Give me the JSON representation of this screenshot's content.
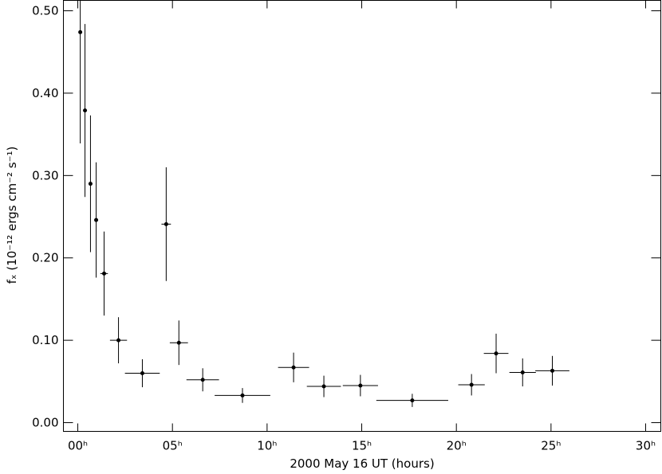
{
  "chart_data": {
    "type": "scatter",
    "xlabel": "2000 May 16 UT (hours)",
    "ylabel": "fₓ (10⁻¹² ergs cm⁻² s⁻¹)",
    "xlim": [
      -0.76,
      30.8
    ],
    "ylim": [
      -0.0106,
      0.5126
    ],
    "xticks": [
      {
        "value": 0,
        "label": "00ʰ"
      },
      {
        "value": 5,
        "label": "05ʰ"
      },
      {
        "value": 10,
        "label": "10ʰ"
      },
      {
        "value": 15,
        "label": "15ʰ"
      },
      {
        "value": 20,
        "label": "20ʰ"
      },
      {
        "value": 25,
        "label": "25ʰ"
      },
      {
        "value": 30,
        "label": "30ʰ"
      }
    ],
    "yticks": [
      {
        "value": 0,
        "label": "0.00"
      },
      {
        "value": 0.1,
        "label": "0.10"
      },
      {
        "value": 0.2,
        "label": "0.20"
      },
      {
        "value": 0.3,
        "label": "0.30"
      },
      {
        "value": 0.4,
        "label": "0.40"
      },
      {
        "value": 0.5,
        "label": "0.50"
      }
    ],
    "color": "#000000",
    "x": [
      0.13,
      0.38,
      0.67,
      0.97,
      1.39,
      2.15,
      3.41,
      4.67,
      5.34,
      6.6,
      8.7,
      11.4,
      13.0,
      14.93,
      17.67,
      20.8,
      22.1,
      23.5,
      25.07
    ],
    "x_err": [
      0.05,
      0.05,
      0.05,
      0.05,
      0.2,
      0.45,
      0.92,
      0.25,
      0.48,
      0.86,
      1.47,
      0.82,
      0.9,
      0.93,
      1.9,
      0.7,
      0.65,
      0.7,
      0.9
    ],
    "values": [
      0.474,
      0.379,
      0.29,
      0.246,
      0.181,
      0.1,
      0.06,
      0.241,
      0.097,
      0.052,
      0.033,
      0.067,
      0.044,
      0.045,
      0.027,
      0.046,
      0.084,
      0.061,
      0.063
    ],
    "y_err": [
      0.135,
      0.105,
      0.083,
      0.07,
      0.051,
      0.028,
      0.017,
      0.069,
      0.027,
      0.014,
      0.009,
      0.018,
      0.013,
      0.013,
      0.008,
      0.013,
      0.024,
      0.017,
      0.018
    ]
  }
}
